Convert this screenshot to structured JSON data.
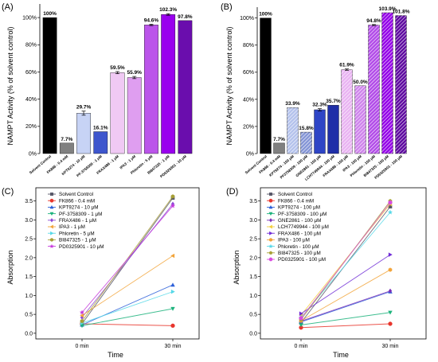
{
  "chart_data": [
    {
      "type": "bar",
      "panel_label": "(A)",
      "ylabel": "NAMPT Activity (% of solvent control)",
      "ylim": [
        0,
        110
      ],
      "yticks": [
        0,
        20,
        40,
        60,
        80,
        100
      ],
      "tick_suffix": "%",
      "categories": [
        "Solvent Control",
        "FK866 - 0.4 mM",
        "KPT9274 - 10 μM",
        "PF-3758309 - 1 μM",
        "FRAX486 - 1 μM",
        "IPA3 - 1 μM",
        "Phloretin - 5 μM",
        "BI847325 - 1 μM",
        "PD0325901 - 10 μM"
      ],
      "values": [
        100,
        7.7,
        29.7,
        16.1,
        59.5,
        55.9,
        94.6,
        102.3,
        97.8
      ],
      "errors": [
        0,
        0,
        1.5,
        0,
        0.8,
        0.8,
        0.5,
        0.6,
        0
      ],
      "labels": [
        "100%",
        "7.7%",
        "29.7%",
        "16.1%",
        "59.5%",
        "55.9%",
        "94.6%",
        "102.3%",
        "97.8%"
      ],
      "colors": [
        "#000000",
        "#808080",
        "#c7d3f5",
        "#3e56cd",
        "#f0c9f4",
        "#df9ef0",
        "#bb55ea",
        "#9900ee",
        "#6a0dad"
      ],
      "hatched": [
        false,
        false,
        false,
        false,
        false,
        false,
        false,
        false,
        false
      ]
    },
    {
      "type": "bar",
      "panel_label": "(B)",
      "ylabel": "NAMPT Activity (% of solvent control)",
      "ylim": [
        0,
        108
      ],
      "yticks": [
        0,
        20,
        40,
        60,
        80,
        100
      ],
      "tick_suffix": "%",
      "categories": [
        "Solvent Control",
        "FK866 - 0.4 mM",
        "KPT9274 - 100 μM",
        "PF3758309 - 100 μM",
        "GNE2861 - 100 μM",
        "LCH7749944 - 100 μM",
        "FRAX486 - 100 μM",
        "IPA3 - 100 μM",
        "Phloretin - 100 μM",
        "BI847325 - 100 μM",
        "PD0325901 - 100 μM"
      ],
      "values": [
        100,
        7.7,
        33.9,
        15.8,
        32.3,
        35.7,
        61.9,
        50.0,
        94.8,
        103.9,
        101.8
      ],
      "errors": [
        0,
        0,
        0,
        0,
        0.8,
        0,
        0.5,
        0,
        0.4,
        0,
        0
      ],
      "labels": [
        "100%",
        "7.7%",
        "33.9%",
        "15.8%",
        "32.3%",
        "35.7%",
        "61.9%",
        "50.0%",
        "94.8%",
        "103.9%",
        "101.8%"
      ],
      "colors": [
        "#000000",
        "#808080",
        "#b4c2ec",
        "#8495d6",
        "#2e45c6",
        "#1f2fa8",
        "#e9b3f2",
        "#cf84ec",
        "#b24ce8",
        "#9400e8",
        "#5e0aa0"
      ],
      "hatched": [
        false,
        false,
        true,
        true,
        false,
        false,
        true,
        true,
        true,
        true,
        true
      ]
    },
    {
      "type": "line",
      "panel_label": "(C)",
      "xlabel": "Time",
      "ylabel": "Absorption",
      "x": [
        "0 min",
        "30 min"
      ],
      "ylim": [
        -0.15,
        3.85
      ],
      "yticks": [
        0.0,
        0.5,
        1.0,
        1.5,
        2.0,
        2.5,
        3.0,
        3.5
      ],
      "legend_position": "top-left",
      "series": [
        {
          "name": "Solvent Control",
          "values": [
            0.25,
            3.58
          ],
          "color": "#555566",
          "marker": "square"
        },
        {
          "name": "FK866 - 0.4 mM",
          "values": [
            0.25,
            0.2
          ],
          "color": "#e8352c",
          "marker": "circle"
        },
        {
          "name": "KPT9274 - 10 μM",
          "values": [
            0.22,
            1.28
          ],
          "color": "#2b5fd9",
          "marker": "triangle-up"
        },
        {
          "name": "PF-3758309 - 1 μM",
          "values": [
            0.2,
            0.65
          ],
          "color": "#1db37c",
          "marker": "triangle-down"
        },
        {
          "name": "FRAX486 - 1 μM",
          "values": [
            0.42,
            3.42
          ],
          "color": "#8b46d6",
          "marker": "diamond"
        },
        {
          "name": "IPA3 - 1 μM",
          "values": [
            0.47,
            2.05
          ],
          "color": "#f2a43a",
          "marker": "triangle-left"
        },
        {
          "name": "Phloretin - 5 μM",
          "values": [
            0.27,
            1.1
          ],
          "color": "#55d8e8",
          "marker": "triangle-right"
        },
        {
          "name": "BI847325 - 1 μM",
          "values": [
            0.32,
            3.62
          ],
          "color": "#a8a036",
          "marker": "hexagon"
        },
        {
          "name": "PD0325901 - 10 μM",
          "values": [
            0.55,
            3.37
          ],
          "color": "#c63adb",
          "marker": "star"
        }
      ]
    },
    {
      "type": "line",
      "panel_label": "(D)",
      "xlabel": "Time",
      "ylabel": "Absorption",
      "x": [
        "0 min",
        "30 min"
      ],
      "ylim": [
        -0.15,
        3.85
      ],
      "yticks": [
        0.0,
        0.5,
        1.0,
        1.5,
        2.0,
        2.5,
        3.0,
        3.5
      ],
      "legend_position": "top-left",
      "series": [
        {
          "name": "Solvent Control",
          "values": [
            0.28,
            3.35
          ],
          "color": "#555566",
          "marker": "square"
        },
        {
          "name": "FK866 - 0.4 mM",
          "values": [
            0.15,
            0.25
          ],
          "color": "#e8352c",
          "marker": "circle"
        },
        {
          "name": "KPT9274 - 100 μM",
          "values": [
            0.3,
            1.1
          ],
          "color": "#2b5fd9",
          "marker": "triangle-up"
        },
        {
          "name": "PF-3758309 - 100 μM",
          "values": [
            0.22,
            0.55
          ],
          "color": "#1db37c",
          "marker": "triangle-down"
        },
        {
          "name": "GNE2861 - 100 μM",
          "values": [
            0.32,
            1.12
          ],
          "color": "#7a2fb8",
          "marker": "diamond"
        },
        {
          "name": "LCH7749944 - 100 μM",
          "values": [
            0.48,
            3.42
          ],
          "color": "#f4cf3a",
          "marker": "triangle-left"
        },
        {
          "name": "FRAX486 - 100 μM",
          "values": [
            0.52,
            2.08
          ],
          "color": "#6f2bd6",
          "marker": "triangle-right"
        },
        {
          "name": "IPA3 - 100 μM",
          "values": [
            0.33,
            1.68
          ],
          "color": "#f2a43a",
          "marker": "hexagon"
        },
        {
          "name": "Phloretin - 100 μM",
          "values": [
            0.42,
            3.2
          ],
          "color": "#55d8e8",
          "marker": "star"
        },
        {
          "name": "BI847325 - 100 μM",
          "values": [
            0.36,
            3.5
          ],
          "color": "#a8a036",
          "marker": "pentagon"
        },
        {
          "name": "PD0325901 - 100 μM",
          "values": [
            0.4,
            3.46
          ],
          "color": "#d84ce0",
          "marker": "circle"
        }
      ]
    }
  ]
}
